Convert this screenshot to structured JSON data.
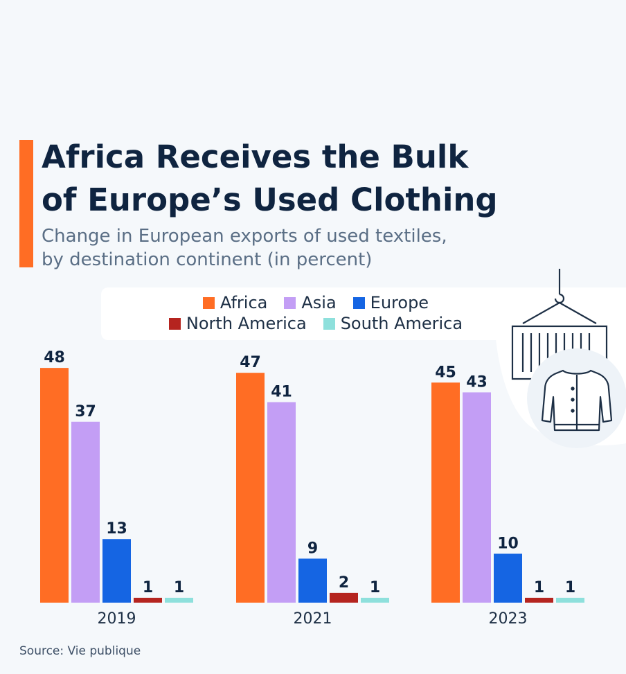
{
  "title_line1": "Africa Receives the Bulk",
  "title_line2": "of Europe’s Used Clothing",
  "subtitle_line1": "Change in European exports of used textiles,",
  "subtitle_line2": "by destination continent (in percent)",
  "source": "Source: Vie publique",
  "icons": [
    "shipping-container-icon",
    "jacket-icon"
  ],
  "chart_data": {
    "type": "bar",
    "title": "Africa Receives the Bulk of Europe’s Used Clothing",
    "subtitle": "Change in European exports of used textiles, by destination continent (in percent)",
    "categories": [
      "2019",
      "2021",
      "2023"
    ],
    "ylim": [
      0,
      50
    ],
    "grid": false,
    "legend": "top",
    "series": [
      {
        "name": "Africa",
        "color": "#ff6d24",
        "values": [
          48,
          47,
          45
        ]
      },
      {
        "name": "Asia",
        "color": "#c39ef5",
        "values": [
          37,
          41,
          43
        ]
      },
      {
        "name": "Europe",
        "color": "#1565e3",
        "values": [
          13,
          9,
          10
        ]
      },
      {
        "name": "North America",
        "color": "#b5241f",
        "values": [
          1,
          2,
          1
        ]
      },
      {
        "name": "South America",
        "color": "#8ee0dc",
        "values": [
          1,
          1,
          1
        ]
      }
    ]
  }
}
